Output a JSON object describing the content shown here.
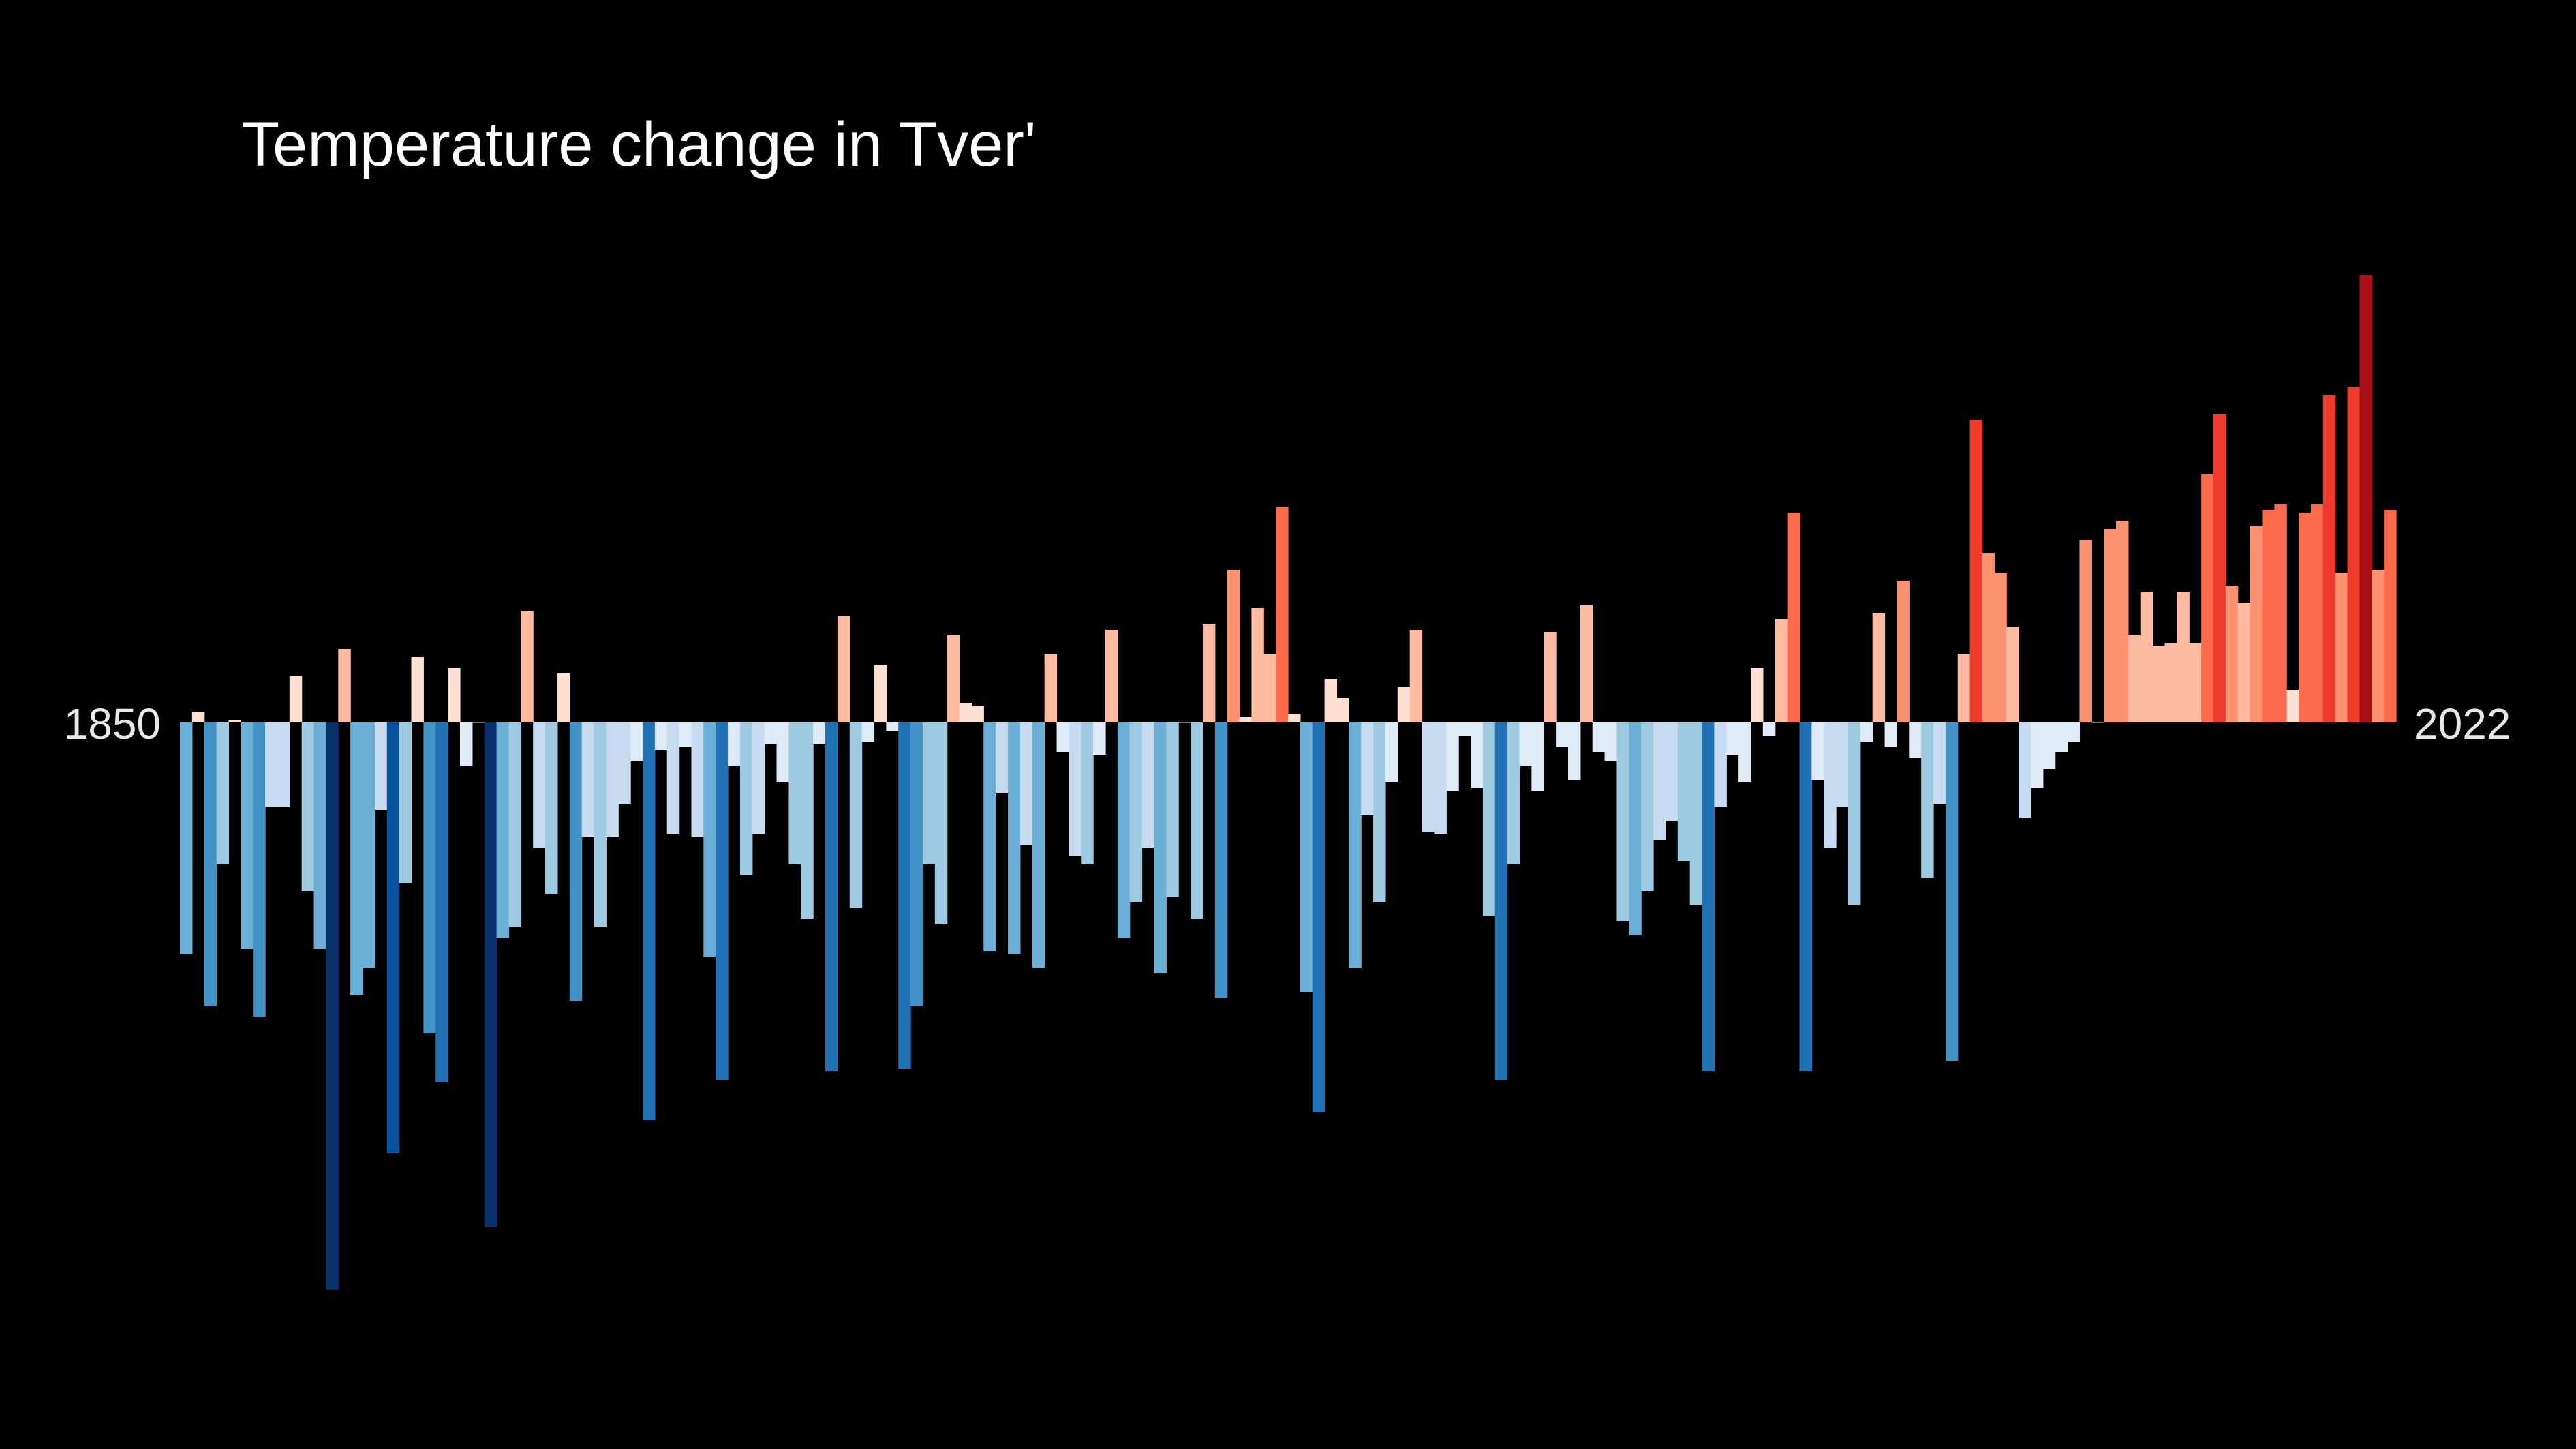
{
  "chart_data": {
    "type": "bar",
    "title": "Temperature change in Tver'",
    "start_label": "1850",
    "end_label": "2022",
    "x_start": 1850,
    "x_end": 2022,
    "xlabel": "",
    "ylabel": "",
    "grid": false,
    "legend": "none",
    "ylim": [
      -2.08,
      1.64
    ],
    "color_scale": [
      "#08306b",
      "#08519c",
      "#2171b5",
      "#4292c6",
      "#6baed6",
      "#9ecae1",
      "#c6dbef",
      "#deebf7",
      "#fee0d2",
      "#fcbba1",
      "#fc9272",
      "#fb6a4a",
      "#ef3b2c",
      "#cb181d",
      "#a50f15",
      "#67000d"
    ],
    "background": "#000000",
    "values": [
      -0.85,
      0.04,
      -1.04,
      -0.52,
      0.01,
      -0.83,
      -1.08,
      -0.31,
      -0.31,
      0.17,
      -0.62,
      -0.83,
      -2.08,
      0.27,
      -1.0,
      -0.9,
      -0.32,
      -1.58,
      -0.59,
      0.24,
      -1.14,
      -1.32,
      0.2,
      -0.16,
      0.0,
      -1.85,
      -0.79,
      -0.75,
      0.41,
      -0.46,
      -0.63,
      0.18,
      -1.02,
      -0.42,
      -0.75,
      -0.42,
      -0.3,
      -0.14,
      -1.46,
      -0.1,
      -0.41,
      -0.09,
      -0.42,
      -0.86,
      -1.31,
      -0.16,
      -0.56,
      -0.41,
      -0.08,
      -0.22,
      -0.52,
      -0.72,
      -0.08,
      -1.28,
      0.39,
      -0.68,
      -0.07,
      0.21,
      -0.03,
      -1.27,
      -1.04,
      -0.52,
      -0.74,
      0.32,
      0.07,
      0.06,
      -0.84,
      -0.26,
      -0.85,
      -0.45,
      -0.9,
      0.25,
      -0.11,
      -0.49,
      -0.52,
      -0.12,
      0.34,
      -0.79,
      -0.66,
      -0.46,
      -0.92,
      -0.64,
      0.0,
      -0.72,
      0.36,
      -1.01,
      0.56,
      0.02,
      0.42,
      0.25,
      0.79,
      0.03,
      -0.99,
      -1.43,
      0.16,
      0.09,
      -0.9,
      -0.34,
      -0.66,
      -0.22,
      0.13,
      0.34,
      -0.4,
      -0.41,
      -0.25,
      -0.05,
      -0.24,
      -0.71,
      -1.31,
      -0.52,
      -0.16,
      -0.25,
      0.33,
      -0.09,
      -0.21,
      0.43,
      -0.11,
      -0.14,
      -0.73,
      -0.78,
      -0.62,
      -0.43,
      -0.36,
      -0.51,
      -0.67,
      -1.28,
      -0.31,
      -0.12,
      -0.22,
      0.2,
      -0.05,
      0.38,
      0.77,
      -1.28,
      -0.21,
      -0.46,
      -0.31,
      -0.67,
      -0.07,
      0.4,
      -0.09,
      0.52,
      -0.13,
      -0.57,
      -0.3,
      -1.24,
      0.25,
      1.11,
      0.62,
      0.55,
      0.35,
      -0.35,
      -0.24,
      -0.17,
      -0.11,
      -0.07,
      0.67,
      0.0,
      0.71,
      0.74,
      0.32,
      0.48,
      0.28,
      0.29,
      0.48,
      0.29,
      0.91,
      1.13,
      0.5,
      0.44,
      0.72,
      0.78,
      0.8,
      0.12,
      0.77,
      0.8,
      1.2,
      0.55,
      1.23,
      1.64,
      0.56,
      0.78
    ]
  }
}
